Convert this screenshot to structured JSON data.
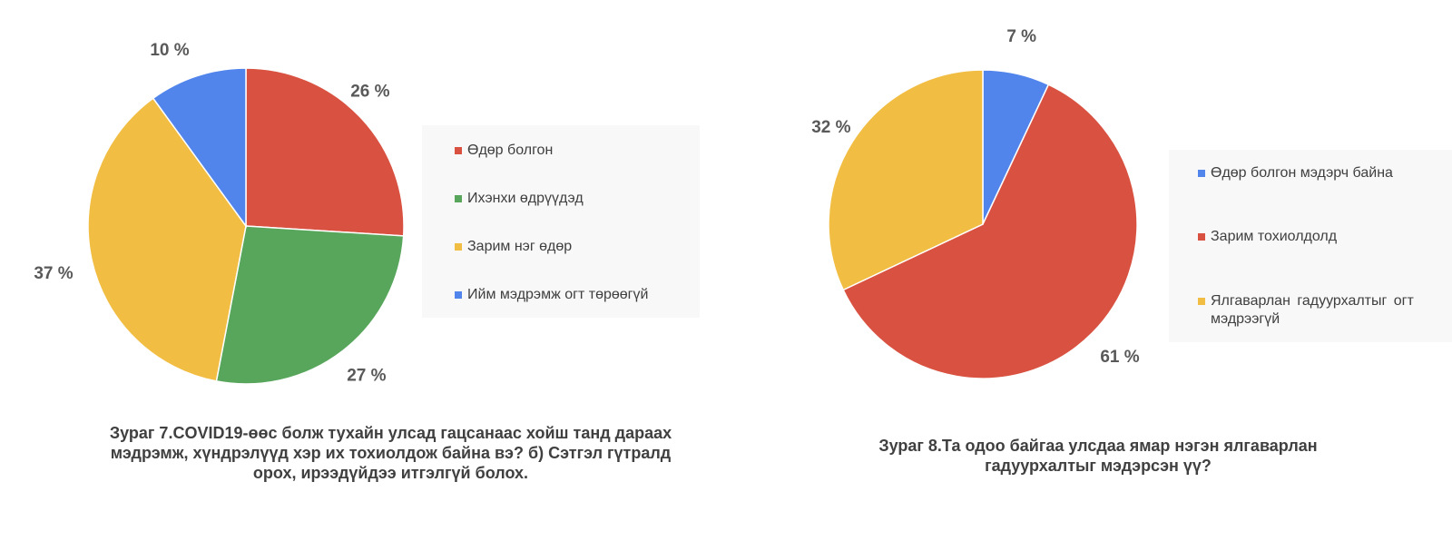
{
  "chart_data": [
    {
      "type": "pie",
      "caption": "Зураг 7.COVID19-өөс болж тухайн улсад гацсанаас хойш танд дараах мэдрэмж, хүндрэлүүд хэр их тохиолдож байна вэ? б) Сэтгэл гүтралд орох, ирээдүйдээ итгэлгүй болох.",
      "slices": [
        {
          "label": "Өдөр болгон",
          "value": 26,
          "color": "#d95140",
          "data_label": "26 %"
        },
        {
          "label": "Ихэнхи өдрүүдэд",
          "value": 27,
          "color": "#58a65c",
          "data_label": "27 %"
        },
        {
          "label": "Зарим нэг өдөр",
          "value": 37,
          "color": "#f1bd42",
          "data_label": "37 %"
        },
        {
          "label": "Ийм мэдрэмж огт төрөөгүй",
          "value": 10,
          "color": "#5185ec",
          "data_label": "10 %"
        }
      ],
      "legend_position": "right"
    },
    {
      "type": "pie",
      "caption": "Зураг 8.Та одоо байгаа улсдаа  ямар нэгэн ялгаварлан гадуурхалтыг мэдэрсэн үү?",
      "slices": [
        {
          "label": "Өдөр болгон мэдэрч байна",
          "value": 7,
          "color": "#5185ec",
          "data_label": "7 %"
        },
        {
          "label": "Зарим тохиолдолд",
          "value": 61,
          "color": "#d95140",
          "data_label": "61 %"
        },
        {
          "label": "Ялгаварлан гадуурхалтыг огт мэдрээгүй",
          "value": 32,
          "color": "#f1bd42",
          "data_label": "32 %"
        }
      ],
      "legend_position": "right"
    }
  ]
}
